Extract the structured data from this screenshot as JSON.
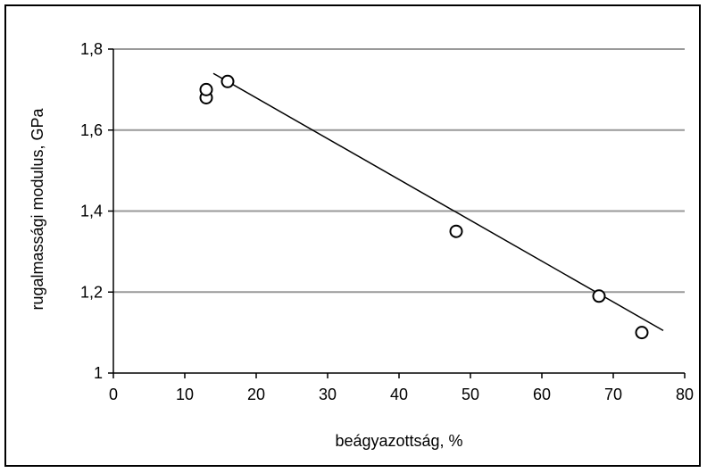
{
  "chart_data": {
    "type": "scatter",
    "title": "",
    "xlabel": "beágyazottság, %",
    "ylabel": "rugalmassági modulus, GPa",
    "xlim": [
      0,
      80
    ],
    "ylim": [
      1,
      1.8
    ],
    "xticks": [
      0,
      10,
      20,
      30,
      40,
      50,
      60,
      70,
      80
    ],
    "yticks": [
      1,
      1.2,
      1.4,
      1.6,
      1.8
    ],
    "xtick_labels": [
      "0",
      "10",
      "20",
      "30",
      "40",
      "50",
      "60",
      "70",
      "80"
    ],
    "ytick_labels": [
      "1",
      "1,2",
      "1,4",
      "1,6",
      "1,8"
    ],
    "grid": "horizontal",
    "legend": "none",
    "series": [
      {
        "marker": "open-circle",
        "x": [
          13,
          13,
          16,
          48,
          68,
          74
        ],
        "y": [
          1.68,
          1.7,
          1.72,
          1.35,
          1.19,
          1.1
        ]
      }
    ],
    "trendline": {
      "type": "linear",
      "x": [
        14,
        77
      ],
      "y": [
        1.74,
        1.105
      ]
    },
    "colors": {
      "grid": "#999999",
      "axis": "#000000",
      "marker": "#000000",
      "trendline": "#000000"
    }
  }
}
